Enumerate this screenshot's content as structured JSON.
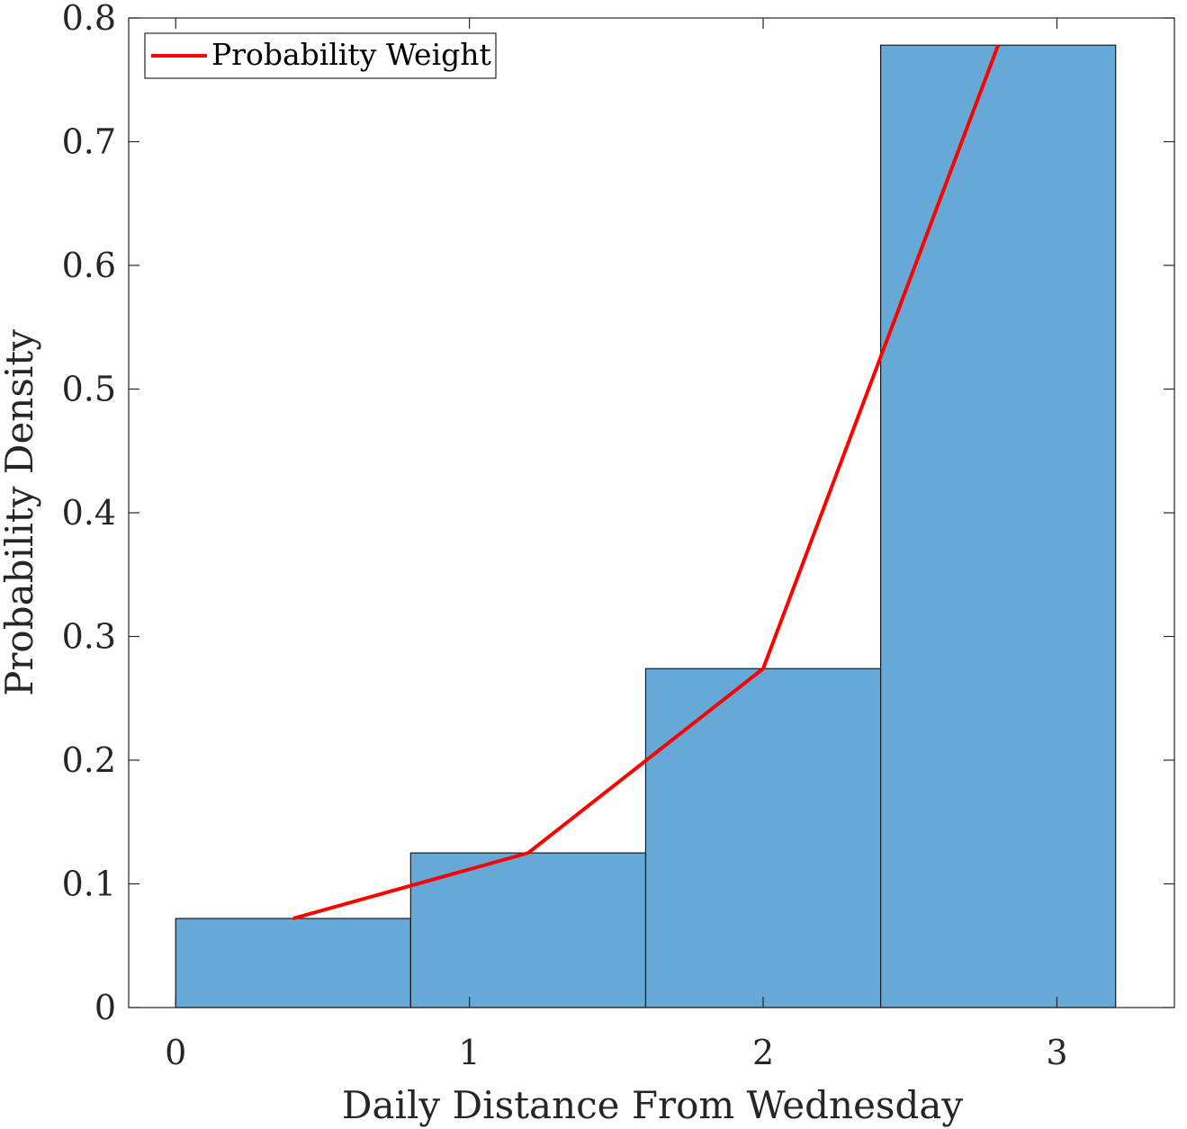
{
  "chart_data": {
    "type": "bar",
    "xlabel": "Daily Distance From Wednesday",
    "ylabel": "Probability Density",
    "xlim": [
      -0.16,
      3.4
    ],
    "ylim": [
      0,
      0.8
    ],
    "xticks": [
      "0",
      "1",
      "2",
      "3"
    ],
    "yticks": [
      "0",
      "0.1",
      "0.2",
      "0.3",
      "0.4",
      "0.5",
      "0.6",
      "0.7",
      "0.8"
    ],
    "grid": false,
    "legend_position": "top-left",
    "bins": [
      {
        "x0": 0.0,
        "x1": 0.8,
        "value": 0.072
      },
      {
        "x0": 0.8,
        "x1": 1.6,
        "value": 0.125
      },
      {
        "x0": 1.6,
        "x1": 2.4,
        "value": 0.274
      },
      {
        "x0": 2.4,
        "x1": 3.2,
        "value": 0.778
      }
    ],
    "series": [
      {
        "name": "Probability Weight",
        "color": "#ff0000",
        "points": [
          {
            "x": 0.4,
            "y": 0.072
          },
          {
            "x": 1.2,
            "y": 0.125
          },
          {
            "x": 2.0,
            "y": 0.274
          },
          {
            "x": 2.8,
            "y": 0.778
          }
        ]
      }
    ],
    "bar_color": "#66a9d6",
    "bar_edge_color": "#1a1a1a"
  }
}
